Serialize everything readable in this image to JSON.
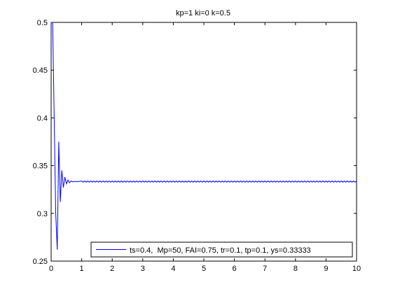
{
  "chart_data": {
    "type": "line",
    "title": "kp=1  ki=0  k=0.5",
    "xlabel": "",
    "ylabel": "",
    "xlim": [
      0,
      10
    ],
    "ylim": [
      0.25,
      0.5
    ],
    "xticks": [
      "0",
      "1",
      "2",
      "3",
      "4",
      "5",
      "6",
      "7",
      "8",
      "9",
      "10"
    ],
    "yticks": [
      "0.25",
      "0.3",
      "0.35",
      "0.4",
      "0.45",
      "0.5"
    ],
    "grid": false,
    "legend_position": "bottom-right",
    "line_color": "#0000ff",
    "series": [
      {
        "name": "ts=0.4,  Mp=50, FAI=0.75, tr=0.1, tp=0.1, ys=0.33333",
        "x": [
          0.0,
          0.05,
          0.1,
          0.15,
          0.2,
          0.25,
          0.3,
          0.35,
          0.4,
          0.45,
          0.5,
          0.55,
          0.6,
          0.65,
          0.7,
          0.75,
          0.8,
          0.85,
          0.9,
          1.0,
          10.0
        ],
        "y": [
          0.5,
          0.5,
          0.4,
          0.3,
          0.262,
          0.375,
          0.312,
          0.345,
          0.327,
          0.338,
          0.331,
          0.335,
          0.332,
          0.334,
          0.333,
          0.3335,
          0.3332,
          0.3334,
          0.3333,
          0.3333,
          0.3333
        ],
        "ripple": 0.0006
      }
    ]
  }
}
